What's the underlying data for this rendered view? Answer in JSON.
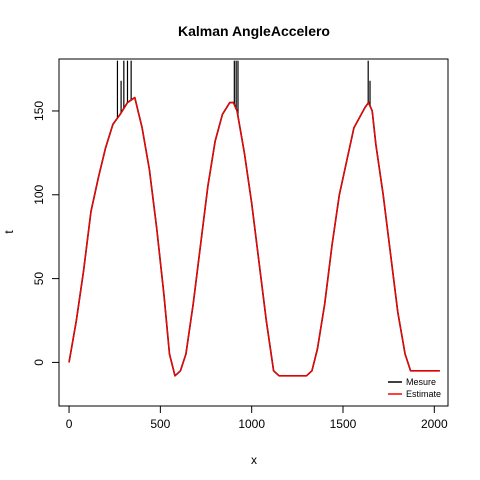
{
  "chart_data": {
    "type": "line",
    "title": "Kalman AngleAccelero",
    "xlabel": "x",
    "ylabel": "t",
    "xlim": [
      -55,
      2075
    ],
    "ylim": [
      -26,
      181
    ],
    "x_ticks": [
      0,
      500,
      1000,
      1500,
      2000
    ],
    "y_ticks": [
      0,
      50,
      100,
      150
    ],
    "x_tick_labels": [
      "0",
      "500",
      "1000",
      "1500",
      "2000"
    ],
    "y_tick_labels": [
      "0",
      "50",
      "100",
      "150"
    ],
    "legend_position": "bottom-right",
    "legend_box": false,
    "grid": false,
    "series": [
      {
        "name": "Mesure",
        "color": "#000000",
        "x": [
          0,
          40,
          80,
          120,
          160,
          200,
          240,
          280,
          320,
          360,
          400,
          440,
          480,
          520,
          550,
          580,
          610,
          640,
          680,
          720,
          760,
          800,
          840,
          880,
          900,
          920,
          960,
          1000,
          1040,
          1080,
          1120,
          1150,
          1200,
          1250,
          1300,
          1330,
          1360,
          1400,
          1440,
          1480,
          1520,
          1560,
          1600,
          1620,
          1640,
          1660,
          1680,
          1720,
          1760,
          1800,
          1840,
          1870,
          1900,
          1950,
          2000,
          2030
        ],
        "y": [
          0,
          25,
          55,
          90,
          110,
          128,
          142,
          148,
          155,
          158,
          140,
          115,
          80,
          40,
          5,
          -8,
          -5,
          5,
          35,
          70,
          105,
          132,
          148,
          155,
          155,
          150,
          125,
          95,
          60,
          25,
          -5,
          -8,
          -8,
          -8,
          -8,
          -5,
          8,
          35,
          70,
          100,
          120,
          140,
          148,
          152,
          155,
          150,
          130,
          100,
          65,
          30,
          5,
          -5,
          -5,
          -5,
          -5,
          -5
        ]
      },
      {
        "name": "Estimate",
        "color": "#ff0000",
        "x": [
          0,
          40,
          80,
          120,
          160,
          200,
          240,
          280,
          320,
          360,
          400,
          440,
          480,
          520,
          550,
          580,
          610,
          640,
          680,
          720,
          760,
          800,
          840,
          880,
          900,
          920,
          960,
          1000,
          1040,
          1080,
          1120,
          1150,
          1200,
          1250,
          1300,
          1330,
          1360,
          1400,
          1440,
          1480,
          1520,
          1560,
          1600,
          1620,
          1640,
          1660,
          1680,
          1720,
          1760,
          1800,
          1840,
          1870,
          1900,
          1950,
          2000,
          2030
        ],
        "y": [
          0,
          25,
          55,
          90,
          110,
          128,
          142,
          148,
          155,
          158,
          140,
          115,
          80,
          40,
          5,
          -8,
          -5,
          5,
          35,
          70,
          105,
          132,
          148,
          155,
          155,
          150,
          125,
          95,
          60,
          25,
          -5,
          -8,
          -8,
          -8,
          -8,
          -5,
          8,
          35,
          70,
          100,
          120,
          140,
          148,
          152,
          155,
          150,
          130,
          100,
          65,
          30,
          5,
          -5,
          -5,
          -5,
          -5,
          -5
        ]
      }
    ],
    "spikes": {
      "color": "#000000",
      "x": [
        265,
        285,
        300,
        320,
        340,
        905,
        915,
        925,
        1638,
        1648
      ],
      "y": [
        180,
        168,
        180,
        180,
        180,
        180,
        180,
        180,
        180,
        168
      ]
    }
  }
}
